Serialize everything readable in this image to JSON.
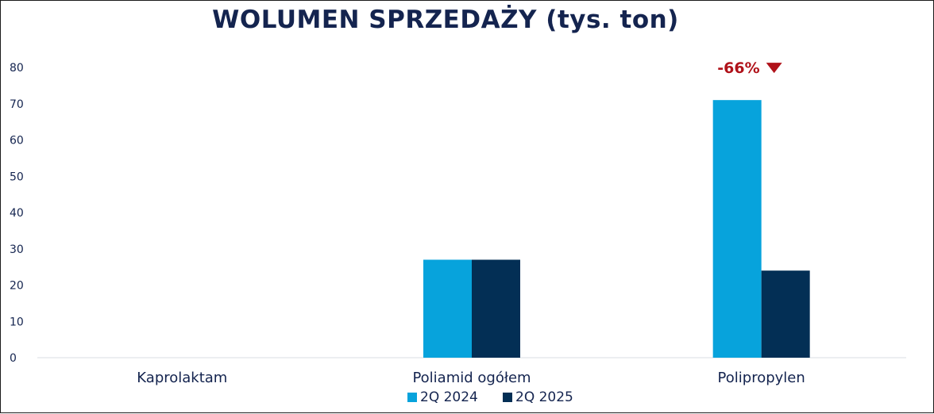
{
  "chart_data": {
    "type": "bar",
    "title": "WOLUMEN SPRZEDAŻY (tys. ton)",
    "categories": [
      "Kaprolaktam",
      "Poliamid ogółem",
      "Polipropylen"
    ],
    "series": [
      {
        "name": "2Q 2024",
        "color": "#07a3dc",
        "values": [
          0,
          27,
          71
        ]
      },
      {
        "name": "2Q 2025",
        "color": "#032f55",
        "values": [
          0,
          27,
          24
        ]
      }
    ],
    "yticks": [
      "0",
      "10",
      "20",
      "30",
      "40",
      "50",
      "60",
      "70",
      "80"
    ],
    "ylim": [
      0,
      80
    ],
    "grid": false,
    "legend_position": "bottom",
    "annotations": [
      {
        "category": "Polipropylen",
        "text": "-66%",
        "marker": "down-triangle",
        "color": "#b0121a"
      }
    ]
  }
}
